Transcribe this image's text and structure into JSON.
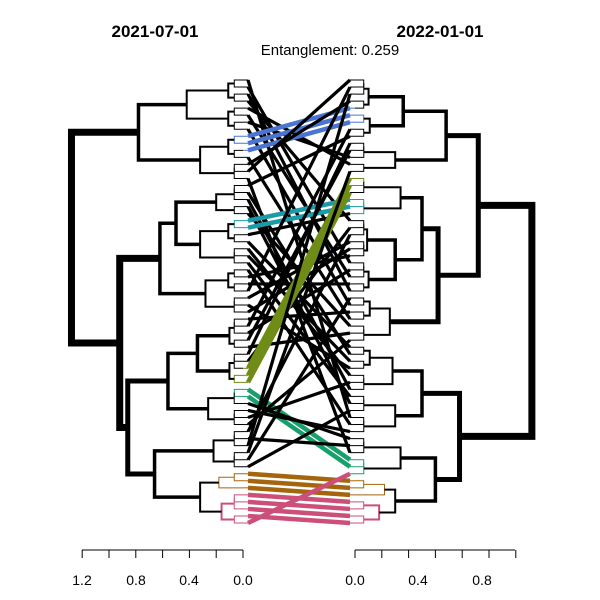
{
  "left_dendrogram": {
    "title": "2021-07-01",
    "axis_ticks": [
      "1.2",
      "0.8",
      "0.4",
      "0.0"
    ],
    "axis_values": [
      1.2,
      1.0,
      0.8,
      0.6,
      0.4,
      0.2,
      0.0
    ]
  },
  "right_dendrogram": {
    "title": "2022-01-01",
    "axis_ticks": [
      "0.0",
      "0.4",
      "0.8"
    ],
    "axis_values": [
      0.0,
      0.2,
      0.4,
      0.6,
      0.8,
      1.0,
      1.2
    ]
  },
  "entanglement_label": "Entanglement: 0.259",
  "colors": {
    "default": "#000000",
    "blue": "#4b74d2",
    "teal": "#1b9aa8",
    "olive": "#6f8c17",
    "green": "#17a06b",
    "brown": "#a5650c",
    "pink": "#cc4f7a"
  },
  "leaf_count": 64
}
